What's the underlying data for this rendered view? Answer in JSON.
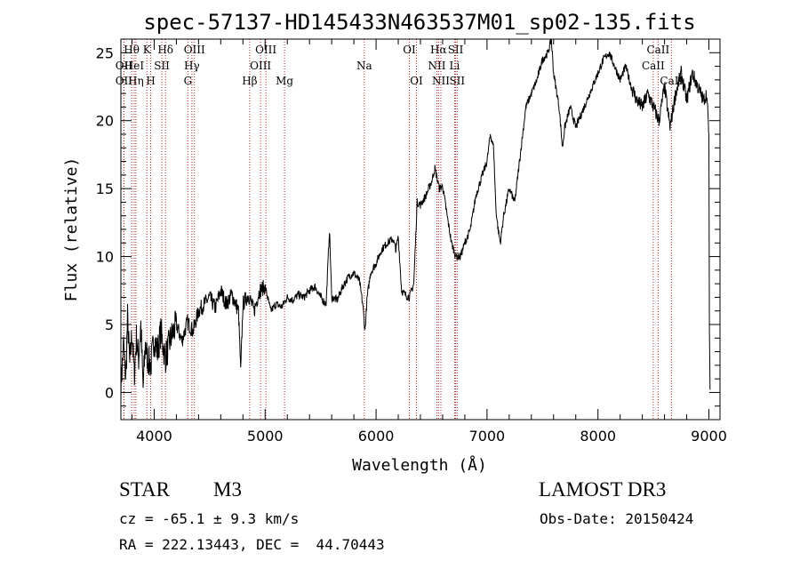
{
  "chart_data": {
    "type": "line",
    "title": "spec-57137-HD145433N463537M01_sp02-135.fits",
    "xlabel": "Wavelength (Å)",
    "ylabel": "Flux (relative)",
    "xlim": [
      3700,
      9100
    ],
    "ylim": [
      -2,
      26
    ],
    "xticks": [
      4000,
      5000,
      6000,
      7000,
      8000,
      9000
    ],
    "yticks": [
      0,
      5,
      10,
      15,
      20,
      25
    ],
    "grid": false,
    "series": [
      {
        "name": "spectrum",
        "anchors": [
          [
            3700,
            0.5
          ],
          [
            3725,
            3.5
          ],
          [
            3745,
            1.0
          ],
          [
            3760,
            5.5
          ],
          [
            3780,
            2.0
          ],
          [
            3800,
            4.5
          ],
          [
            3820,
            1.2
          ],
          [
            3840,
            4.0
          ],
          [
            3860,
            2.5
          ],
          [
            3880,
            5.0
          ],
          [
            3900,
            0.3
          ],
          [
            3920,
            3.5
          ],
          [
            3940,
            2.5
          ],
          [
            3970,
            2.0
          ],
          [
            4000,
            4.0
          ],
          [
            4030,
            3.0
          ],
          [
            4060,
            4.5
          ],
          [
            4100,
            2.5
          ],
          [
            4150,
            4.0
          ],
          [
            4200,
            5.0
          ],
          [
            4250,
            3.8
          ],
          [
            4300,
            5.2
          ],
          [
            4350,
            4.5
          ],
          [
            4400,
            6.0
          ],
          [
            4450,
            6.5
          ],
          [
            4500,
            7.0
          ],
          [
            4550,
            6.2
          ],
          [
            4600,
            7.5
          ],
          [
            4650,
            6.5
          ],
          [
            4700,
            7.2
          ],
          [
            4760,
            6.0
          ],
          [
            4780,
            1.5
          ],
          [
            4800,
            6.5
          ],
          [
            4850,
            7.2
          ],
          [
            4900,
            6.0
          ],
          [
            4950,
            7.5
          ],
          [
            5000,
            7.8
          ],
          [
            5050,
            6.0
          ],
          [
            5100,
            6.5
          ],
          [
            5150,
            6.3
          ],
          [
            5200,
            7.0
          ],
          [
            5250,
            6.8
          ],
          [
            5300,
            7.2
          ],
          [
            5350,
            7.0
          ],
          [
            5400,
            7.5
          ],
          [
            5450,
            7.8
          ],
          [
            5500,
            7.0
          ],
          [
            5550,
            6.5
          ],
          [
            5580,
            12.0
          ],
          [
            5600,
            7.0
          ],
          [
            5650,
            6.8
          ],
          [
            5700,
            7.8
          ],
          [
            5750,
            8.5
          ],
          [
            5800,
            8.8
          ],
          [
            5850,
            8.2
          ],
          [
            5880,
            6.5
          ],
          [
            5900,
            4.5
          ],
          [
            5920,
            7.0
          ],
          [
            5950,
            8.8
          ],
          [
            6000,
            9.5
          ],
          [
            6050,
            10.5
          ],
          [
            6100,
            11.0
          ],
          [
            6150,
            11.3
          ],
          [
            6180,
            10.5
          ],
          [
            6200,
            11.5
          ],
          [
            6230,
            7.5
          ],
          [
            6260,
            7.2
          ],
          [
            6300,
            7.0
          ],
          [
            6340,
            8.0
          ],
          [
            6370,
            14.0
          ],
          [
            6400,
            13.8
          ],
          [
            6450,
            14.5
          ],
          [
            6500,
            15.5
          ],
          [
            6530,
            16.5
          ],
          [
            6570,
            15.0
          ],
          [
            6600,
            15.2
          ],
          [
            6650,
            12.5
          ],
          [
            6680,
            11.0
          ],
          [
            6720,
            10.0
          ],
          [
            6760,
            10.0
          ],
          [
            6800,
            11.0
          ],
          [
            6850,
            12.0
          ],
          [
            6900,
            14.5
          ],
          [
            6950,
            15.8
          ],
          [
            7000,
            17.0
          ],
          [
            7030,
            19.0
          ],
          [
            7060,
            18.0
          ],
          [
            7080,
            13.5
          ],
          [
            7100,
            12.0
          ],
          [
            7120,
            11.0
          ],
          [
            7150,
            13.0
          ],
          [
            7200,
            15.0
          ],
          [
            7250,
            14.0
          ],
          [
            7300,
            17.5
          ],
          [
            7350,
            21.0
          ],
          [
            7400,
            22.0
          ],
          [
            7450,
            23.0
          ],
          [
            7500,
            24.5
          ],
          [
            7550,
            25.0
          ],
          [
            7580,
            26.0
          ],
          [
            7600,
            23.5
          ],
          [
            7650,
            21.0
          ],
          [
            7680,
            18.0
          ],
          [
            7700,
            19.5
          ],
          [
            7750,
            21.0
          ],
          [
            7800,
            19.5
          ],
          [
            7850,
            20.5
          ],
          [
            7900,
            21.5
          ],
          [
            7950,
            22.5
          ],
          [
            8000,
            23.5
          ],
          [
            8050,
            24.5
          ],
          [
            8100,
            25.0
          ],
          [
            8150,
            24.0
          ],
          [
            8200,
            23.0
          ],
          [
            8250,
            24.0
          ],
          [
            8300,
            22.5
          ],
          [
            8350,
            21.5
          ],
          [
            8400,
            21.0
          ],
          [
            8450,
            22.0
          ],
          [
            8500,
            21.0
          ],
          [
            8550,
            20.0
          ],
          [
            8600,
            22.5
          ],
          [
            8650,
            19.5
          ],
          [
            8700,
            22.0
          ],
          [
            8750,
            23.5
          ],
          [
            8800,
            21.5
          ],
          [
            8850,
            23.5
          ],
          [
            8900,
            22.5
          ],
          [
            8950,
            21.5
          ],
          [
            8980,
            22.0
          ],
          [
            9000,
            19.0
          ],
          [
            9005,
            4.5
          ],
          [
            9010,
            0.2
          ]
        ]
      }
    ],
    "lines": [
      {
        "label": "Hθ",
        "w": 3797,
        "row": 0
      },
      {
        "label": "OII",
        "w": 3727,
        "row": 1
      },
      {
        "label": "OII",
        "w": 3727,
        "row": 2
      },
      {
        "label": "HeI",
        "w": 3820,
        "row": 1
      },
      {
        "label": "Hη",
        "w": 3835,
        "row": 2
      },
      {
        "label": "K",
        "w": 3934,
        "row": 0
      },
      {
        "label": "H",
        "w": 3969,
        "row": 2
      },
      {
        "label": "Hδ",
        "w": 4102,
        "row": 0
      },
      {
        "label": "SII",
        "w": 4069,
        "row": 1
      },
      {
        "label": "OIII",
        "w": 4363,
        "row": 0
      },
      {
        "label": "Hγ",
        "w": 4340,
        "row": 1
      },
      {
        "label": "G",
        "w": 4304,
        "row": 2
      },
      {
        "label": "OIII",
        "w": 5007,
        "row": 0
      },
      {
        "label": "OIII",
        "w": 4959,
        "row": 1
      },
      {
        "label": "Hβ",
        "w": 4861,
        "row": 2
      },
      {
        "label": "Mg",
        "w": 5175,
        "row": 2
      },
      {
        "label": "Na",
        "w": 5894,
        "row": 1
      },
      {
        "label": "OI",
        "w": 6300,
        "row": 0
      },
      {
        "label": "OI",
        "w": 6364,
        "row": 2
      },
      {
        "label": "Hα",
        "w": 6563,
        "row": 0
      },
      {
        "label": "NII",
        "w": 6548,
        "row": 1
      },
      {
        "label": "NII",
        "w": 6584,
        "row": 2
      },
      {
        "label": "SII",
        "w": 6717,
        "row": 0
      },
      {
        "label": "Li",
        "w": 6708,
        "row": 1
      },
      {
        "label": "SII",
        "w": 6731,
        "row": 2
      },
      {
        "label": "CaII",
        "w": 8542,
        "row": 0
      },
      {
        "label": "CaII",
        "w": 8498,
        "row": 1
      },
      {
        "label": "CaII",
        "w": 8662,
        "row": 2
      }
    ]
  },
  "info": {
    "class_label": "STAR",
    "subclass_label": "M3",
    "survey": "LAMOST DR3",
    "cz": "cz = -65.1 ± 9.3 km/s",
    "obs_date": "Obs-Date: 20150424",
    "coords": "RA = 222.13443, DEC =  44.70443"
  },
  "colors": {
    "line_marker": "#b22222",
    "axis": "#000000",
    "spectrum": "#000000"
  }
}
